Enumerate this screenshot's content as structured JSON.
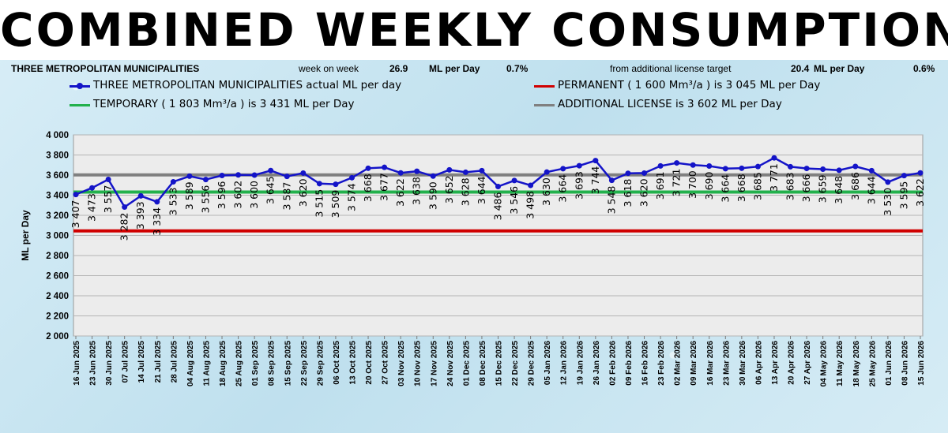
{
  "header": {
    "title": "COMBINED WEEKLY CONSUMPTION"
  },
  "info": {
    "area": "THREE METROPOLITAN MUNICIPALITIES",
    "week_label": "week on week",
    "week_value": "26.9",
    "week_unit": "ML per Day",
    "week_pct": "0.7%",
    "license_label": "from additional license target",
    "license_value": "20.4",
    "license_unit": "ML per Day",
    "license_pct": "0.6%"
  },
  "colors": {
    "actual": "#1414c8",
    "permanent": "#d00000",
    "temporary": "#22b14c",
    "additional": "#808080"
  },
  "chart_data": {
    "type": "line",
    "ylabel": "ML per Day",
    "ylim": [
      2000,
      4000
    ],
    "yticks": [
      "2 000",
      "2 200",
      "2 400",
      "2 600",
      "2 800",
      "3 000",
      "3 200",
      "3 400",
      "3 600",
      "3 800",
      "4 000"
    ],
    "grid": true,
    "legend_position": "top",
    "x": [
      "16 Jun 2025",
      "23 Jun 2025",
      "30 Jun 2025",
      "07 Jul 2025",
      "14 Jul 2025",
      "21 Jul 2025",
      "28 Jul 2025",
      "04 Aug 2025",
      "11 Aug 2025",
      "18 Aug 2025",
      "25 Aug 2025",
      "01 Sep 2025",
      "08 Sep 2025",
      "15 Sep 2025",
      "22 Sep 2025",
      "29 Sep 2025",
      "06 Oct 2025",
      "13 Oct 2025",
      "20 Oct 2025",
      "27 Oct 2025",
      "03 Nov 2025",
      "10 Nov 2025",
      "17 Nov 2025",
      "24 Nov 2025",
      "01 Dec 2025",
      "08 Dec 2025",
      "15 Dec 2025",
      "22 Dec 2025",
      "29 Dec 2025",
      "05 Jan 2026",
      "12 Jan 2026",
      "19 Jan 2026",
      "26 Jan 2026",
      "02 Feb 2026",
      "09 Feb 2026",
      "16 Feb 2026",
      "23 Feb 2026",
      "02 Mar 2026",
      "09 Mar 2026",
      "16 Mar 2026",
      "23 Mar 2026",
      "30 Mar 2026",
      "06 Apr 2026",
      "13 Apr 2026",
      "20 Apr 2026",
      "27 Apr 2026",
      "04 May 2026",
      "11 May 2026",
      "18 May 2026",
      "25 May 2026",
      "01 Jun 2026",
      "08 Jun 2026",
      "15 Jun 2026"
    ],
    "series": [
      {
        "name": "THREE METROPOLITAN MUNICIPALITIES actual ML per day",
        "values": [
          3407,
          3473,
          3557,
          3282,
          3393,
          3334,
          3533,
          3589,
          3556,
          3596,
          3602,
          3600,
          3645,
          3587,
          3620,
          3515,
          3509,
          3574,
          3668,
          3677,
          3622,
          3638,
          3590,
          3652,
          3628,
          3644,
          3486,
          3546,
          3498,
          3630,
          3664,
          3693,
          3744,
          3548,
          3618,
          3620,
          3691,
          3721,
          3700,
          3690,
          3664,
          3668,
          3685,
          3771,
          3683,
          3666,
          3659,
          3648,
          3686,
          3644,
          3530,
          3595,
          3622
        ],
        "data_labels": [
          "3 407",
          "3 473",
          "3 557",
          "3 282",
          "3 393",
          "3 334",
          "3 533",
          "3 589",
          "3 556",
          "3 596",
          "3 602",
          "3 600",
          "3 645",
          "3 587",
          "3 620",
          "3 515",
          "3 509",
          "3 574",
          "3 668",
          "3 677",
          "3 622",
          "3 638",
          "3 590",
          "3 652",
          "3 628",
          "3 644",
          "3 486",
          "3 546",
          "3 498",
          "3 630",
          "3 664",
          "3 693",
          "3 744",
          "3 548",
          "3 618",
          "3 620",
          "3 691",
          "3 721",
          "3 700",
          "3 690",
          "3 664",
          "3 668",
          "3 685",
          "3 771",
          "3 683",
          "3 666",
          "3 659",
          "3 648",
          "3 686",
          "3 644",
          "3 530",
          "3 595",
          "3 622"
        ]
      },
      {
        "name": "PERMANENT ( 1 600 Mm³/a ) is 3 045 ML per Day",
        "value": 3045
      },
      {
        "name": "TEMPORARY ( 1 803 Mm³/a  ) is 3 431 ML per Day",
        "value": 3431
      },
      {
        "name": "ADDITIONAL LICENSE is 3 602 ML per Day",
        "value": 3602
      }
    ]
  }
}
